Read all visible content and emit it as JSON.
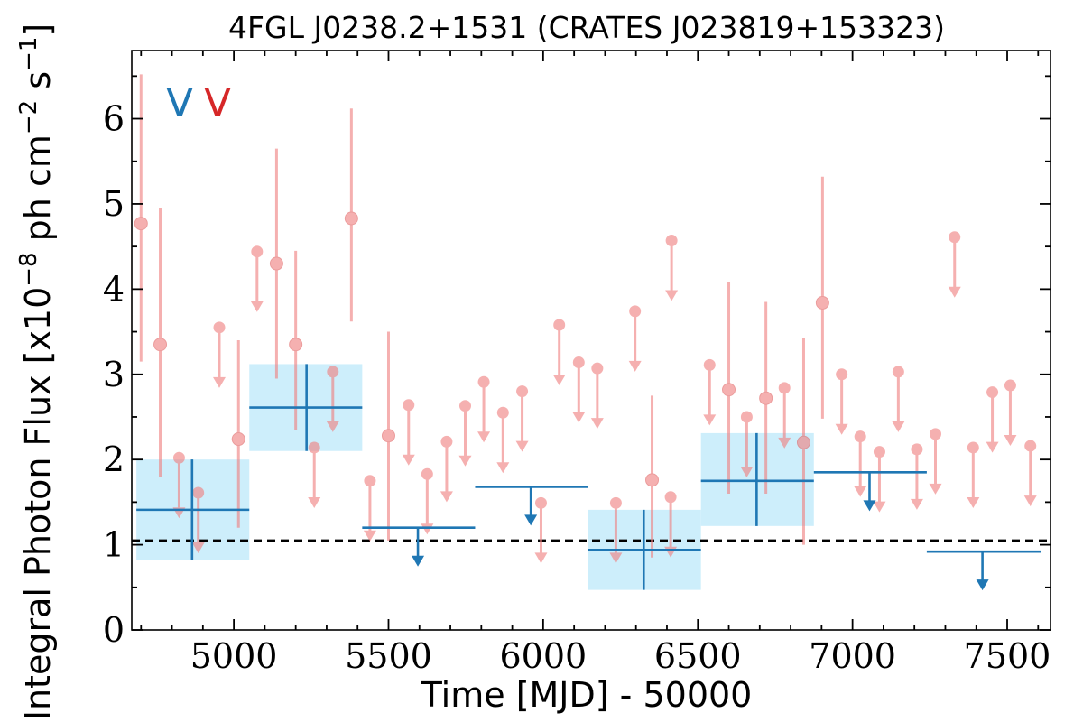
{
  "chart_data": {
    "type": "scatter",
    "title": "4FGL J0238.2+1531 (CRATES J023819+153323)",
    "xlabel": "Time [MJD] - 50000",
    "ylabel_main": "Integral Photon Flux [x10",
    "ylabel_exp1": "−8",
    "ylabel_mid": " ph cm",
    "ylabel_exp2": "−2",
    "ylabel_s": " s",
    "ylabel_exp3": "−1",
    "ylabel_end": "]",
    "xlim": [
      4670,
      7640
    ],
    "ylim": [
      0,
      6.8
    ],
    "x_ticks": [
      5000,
      5500,
      6000,
      6500,
      7000,
      7500
    ],
    "y_ticks": [
      0,
      1,
      2,
      3,
      4,
      5,
      6
    ],
    "legend": {
      "placement": "top-left",
      "entries": [
        {
          "label": "V",
          "color": "#1f77b4"
        },
        {
          "label": "V",
          "color": "#d62728"
        }
      ]
    },
    "reference_line": {
      "y": 1.05,
      "style": "dashed",
      "color": "#000000"
    },
    "colors": {
      "monthly": "#f08080",
      "yearly": "#1f77b4",
      "yearly_band": "#cdeefb"
    },
    "monthly_detections": [
      {
        "x": 4700,
        "y": 4.77,
        "ylo": 3.15,
        "yhi": 6.52
      },
      {
        "x": 4762,
        "y": 3.35,
        "ylo": 1.8,
        "yhi": 4.95
      },
      {
        "x": 5015,
        "y": 2.24,
        "ylo": 1.2,
        "yhi": 3.4
      },
      {
        "x": 5138,
        "y": 4.3,
        "ylo": 2.95,
        "yhi": 5.65
      },
      {
        "x": 5200,
        "y": 3.35,
        "ylo": 2.35,
        "yhi": 4.45
      },
      {
        "x": 5380,
        "y": 4.83,
        "ylo": 3.62,
        "yhi": 6.12
      },
      {
        "x": 5500,
        "y": 2.28,
        "ylo": 1.05,
        "yhi": 3.5
      },
      {
        "x": 6352,
        "y": 1.76,
        "ylo": 0.85,
        "yhi": 2.75
      },
      {
        "x": 6600,
        "y": 2.82,
        "ylo": 1.6,
        "yhi": 4.08
      },
      {
        "x": 6720,
        "y": 2.72,
        "ylo": 1.6,
        "yhi": 3.85
      },
      {
        "x": 6842,
        "y": 2.2,
        "ylo": 1.0,
        "yhi": 3.43
      },
      {
        "x": 6903,
        "y": 3.84,
        "ylo": 2.48,
        "yhi": 5.32
      }
    ],
    "monthly_upper_limits": [
      {
        "x": 4823,
        "y": 2.02
      },
      {
        "x": 4885,
        "y": 1.61
      },
      {
        "x": 4953,
        "y": 3.55
      },
      {
        "x": 5075,
        "y": 4.44
      },
      {
        "x": 5260,
        "y": 2.14
      },
      {
        "x": 5320,
        "y": 3.03
      },
      {
        "x": 5440,
        "y": 1.75
      },
      {
        "x": 5565,
        "y": 2.64
      },
      {
        "x": 5625,
        "y": 1.83
      },
      {
        "x": 5688,
        "y": 2.21
      },
      {
        "x": 5748,
        "y": 2.63
      },
      {
        "x": 5808,
        "y": 2.91
      },
      {
        "x": 5870,
        "y": 2.55
      },
      {
        "x": 5932,
        "y": 2.8
      },
      {
        "x": 5993,
        "y": 1.49
      },
      {
        "x": 6052,
        "y": 3.58
      },
      {
        "x": 6115,
        "y": 3.14
      },
      {
        "x": 6175,
        "y": 3.07
      },
      {
        "x": 6235,
        "y": 1.49
      },
      {
        "x": 6297,
        "y": 3.74
      },
      {
        "x": 6412,
        "y": 1.56
      },
      {
        "x": 6415,
        "y": 4.57
      },
      {
        "x": 6538,
        "y": 3.11
      },
      {
        "x": 6658,
        "y": 2.5
      },
      {
        "x": 6780,
        "y": 2.84
      },
      {
        "x": 6965,
        "y": 3.0
      },
      {
        "x": 7025,
        "y": 2.27
      },
      {
        "x": 7087,
        "y": 2.09
      },
      {
        "x": 7148,
        "y": 3.03
      },
      {
        "x": 7208,
        "y": 2.12
      },
      {
        "x": 7268,
        "y": 2.3
      },
      {
        "x": 7330,
        "y": 4.61
      },
      {
        "x": 7390,
        "y": 2.14
      },
      {
        "x": 7452,
        "y": 2.79
      },
      {
        "x": 7510,
        "y": 2.87
      },
      {
        "x": 7575,
        "y": 2.16
      }
    ],
    "yearly_detections": [
      {
        "xlo": 4685,
        "xhi": 5050,
        "x": 4865,
        "y": 1.41,
        "ylo": 0.82,
        "yhi": 2.0
      },
      {
        "xlo": 5050,
        "xhi": 5415,
        "x": 5235,
        "y": 2.61,
        "ylo": 2.1,
        "yhi": 3.12
      },
      {
        "xlo": 6145,
        "xhi": 6510,
        "x": 6325,
        "y": 0.94,
        "ylo": 0.47,
        "yhi": 1.41
      },
      {
        "xlo": 6510,
        "xhi": 6875,
        "x": 6690,
        "y": 1.75,
        "ylo": 1.22,
        "yhi": 2.31
      }
    ],
    "yearly_upper_limits": [
      {
        "xlo": 5415,
        "xhi": 5780,
        "x": 5595,
        "y": 1.2
      },
      {
        "xlo": 5780,
        "xhi": 6145,
        "x": 5960,
        "y": 1.68
      },
      {
        "xlo": 6875,
        "xhi": 7240,
        "x": 7055,
        "y": 1.85
      },
      {
        "xlo": 7240,
        "xhi": 7610,
        "x": 7420,
        "y": 0.92
      }
    ]
  }
}
